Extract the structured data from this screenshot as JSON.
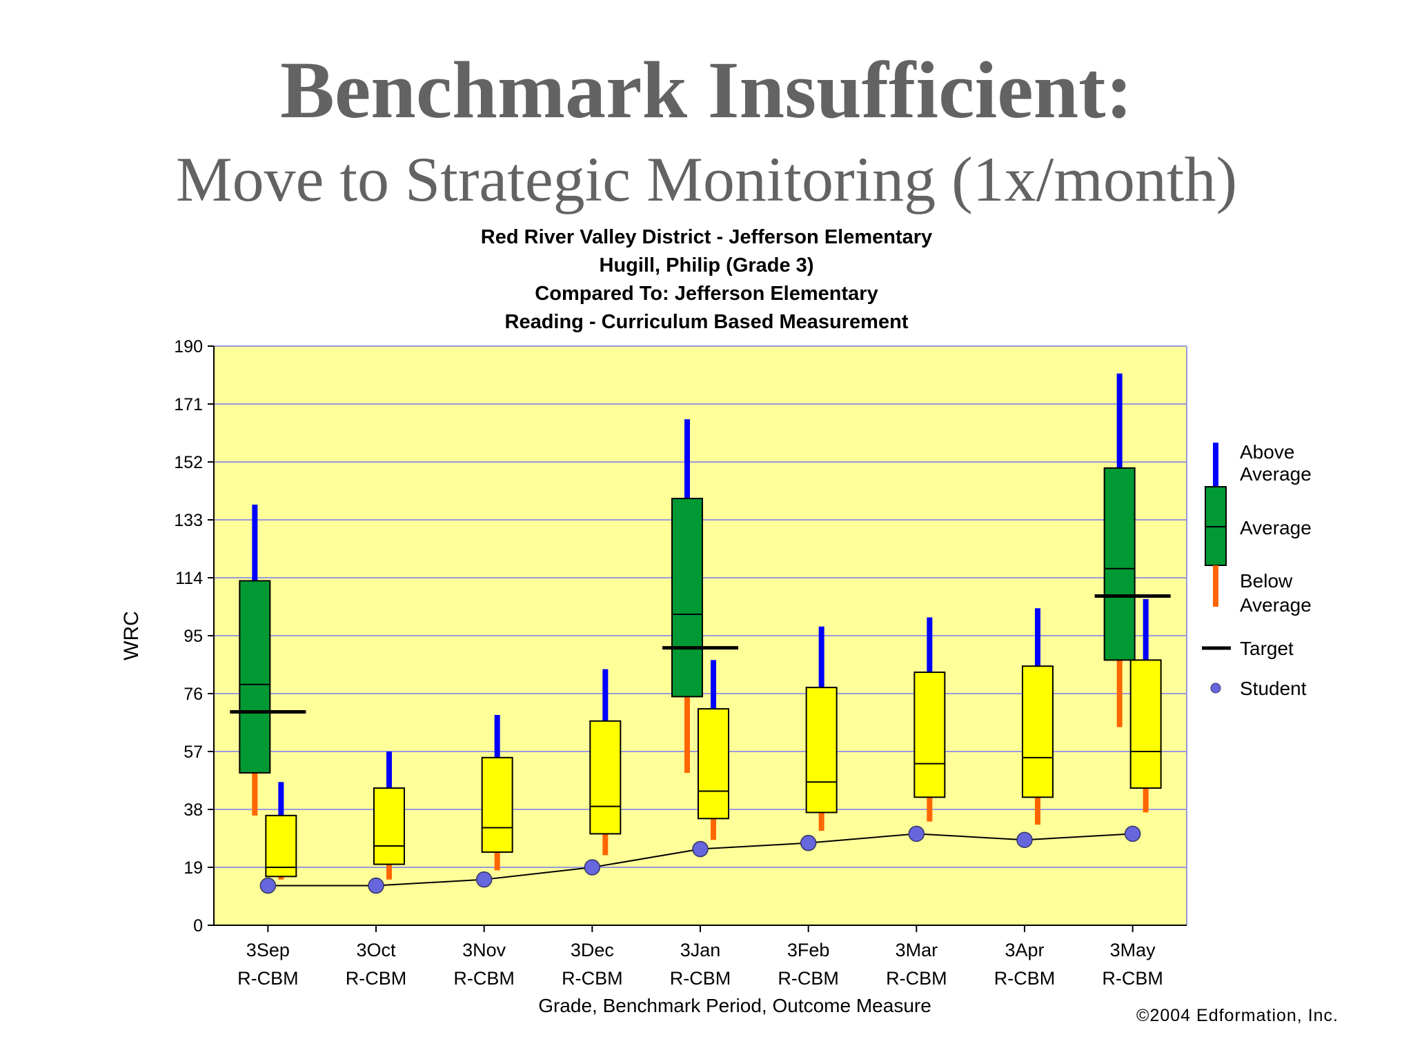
{
  "slide": {
    "title": "Benchmark Insufficient:",
    "subtitle": "Move to Strategic Monitoring (1x/month)"
  },
  "chart_data": {
    "type": "box",
    "title_lines": [
      "Red River Valley District - Jefferson Elementary",
      "Hugill, Philip (Grade 3)",
      "Compared To: Jefferson Elementary",
      "Reading - Curriculum Based Measurement"
    ],
    "ylabel": "WRC",
    "xlabel": "Grade, Benchmark Period, Outcome Measure",
    "ylim": [
      0,
      190
    ],
    "yticks": [
      0,
      19,
      38,
      57,
      76,
      95,
      114,
      133,
      152,
      171,
      190
    ],
    "grid": true,
    "categories": [
      {
        "line1": "3Sep",
        "line2": "R-CBM"
      },
      {
        "line1": "3Oct",
        "line2": "R-CBM"
      },
      {
        "line1": "3Nov",
        "line2": "R-CBM"
      },
      {
        "line1": "3Dec",
        "line2": "R-CBM"
      },
      {
        "line1": "3Jan",
        "line2": "R-CBM"
      },
      {
        "line1": "3Feb",
        "line2": "R-CBM"
      },
      {
        "line1": "3Mar",
        "line2": "R-CBM"
      },
      {
        "line1": "3Apr",
        "line2": "R-CBM"
      },
      {
        "line1": "3May",
        "line2": "R-CBM"
      }
    ],
    "benchmark_boxes": [
      {
        "category_index": 0,
        "min": 36,
        "q1": 50,
        "median": 79,
        "q3": 113,
        "max": 138,
        "color": "#009933"
      },
      {
        "category_index": 4,
        "min": 50,
        "q1": 75,
        "median": 102,
        "q3": 140,
        "max": 166,
        "color": "#009933"
      },
      {
        "category_index": 8,
        "min": 65,
        "q1": 87,
        "median": 117,
        "q3": 150,
        "max": 181,
        "color": "#009933"
      }
    ],
    "monitoring_boxes": [
      {
        "category_index": 0,
        "min": 15,
        "q1": 16,
        "median": 19,
        "q3": 36,
        "max": 47,
        "color": "#ffff00"
      },
      {
        "category_index": 1,
        "min": 15,
        "q1": 20,
        "median": 26,
        "q3": 45,
        "max": 57,
        "color": "#ffff00"
      },
      {
        "category_index": 2,
        "min": 18,
        "q1": 24,
        "median": 32,
        "q3": 55,
        "max": 69,
        "color": "#ffff00"
      },
      {
        "category_index": 3,
        "min": 23,
        "q1": 30,
        "median": 39,
        "q3": 67,
        "max": 84,
        "color": "#ffff00"
      },
      {
        "category_index": 4,
        "min": 28,
        "q1": 35,
        "median": 44,
        "q3": 71,
        "max": 87,
        "color": "#ffff00"
      },
      {
        "category_index": 5,
        "min": 31,
        "q1": 37,
        "median": 47,
        "q3": 78,
        "max": 98,
        "color": "#ffff00"
      },
      {
        "category_index": 6,
        "min": 34,
        "q1": 42,
        "median": 53,
        "q3": 83,
        "max": 101,
        "color": "#ffff00"
      },
      {
        "category_index": 7,
        "min": 33,
        "q1": 42,
        "median": 55,
        "q3": 85,
        "max": 104,
        "color": "#ffff00"
      },
      {
        "category_index": 8,
        "min": 37,
        "q1": 45,
        "median": 57,
        "q3": 87,
        "max": 107,
        "color": "#ffff00"
      }
    ],
    "targets": [
      {
        "category_index": 0,
        "value": 70
      },
      {
        "category_index": 4,
        "value": 91
      },
      {
        "category_index": 8,
        "value": 108
      }
    ],
    "student": {
      "name": "Student",
      "values": [
        13,
        13,
        15,
        19,
        25,
        27,
        30,
        28,
        30
      ]
    },
    "legend": {
      "position": "right",
      "items": [
        "Above Average",
        "Average",
        "Below Average",
        "Target",
        "Student"
      ],
      "above_label": [
        "Above",
        "Average"
      ],
      "average_label": "Average",
      "below_label": [
        "Below",
        "Average"
      ],
      "target_label": "Target",
      "student_label": "Student"
    },
    "colors": {
      "background": "#ffff99",
      "gridline": "#9999dd",
      "above_whisker": "#0000ff",
      "below_whisker": "#ff6600",
      "student": "#6666dd",
      "target": "#000000"
    },
    "copyright": "©2004 Edformation, Inc."
  }
}
